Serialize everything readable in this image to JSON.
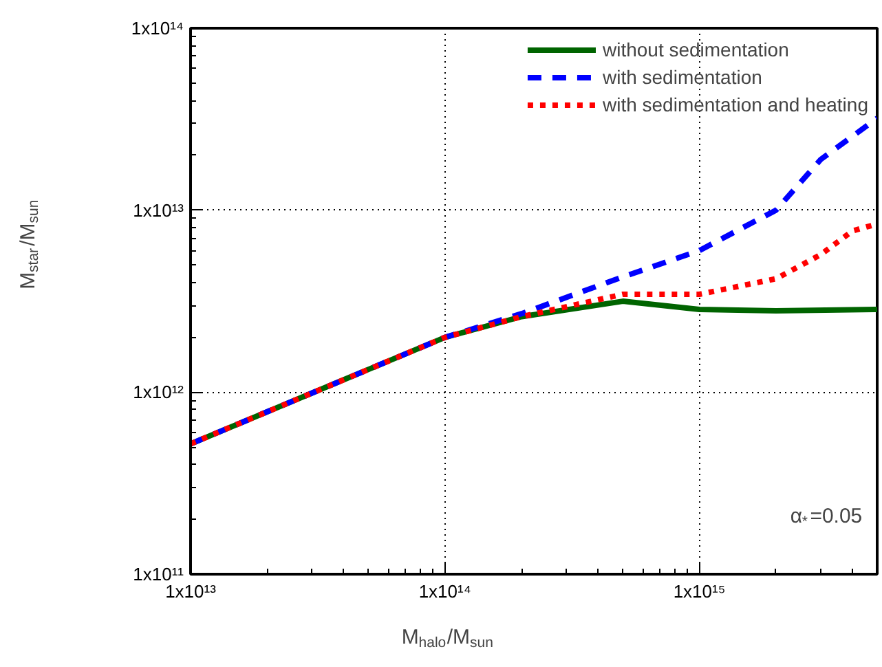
{
  "chart_data": {
    "type": "line",
    "log": "xy",
    "grid": true,
    "legend": "top right",
    "xlabel": "M$_{halo}$/M$_{sun}$",
    "ylabel": "M$_{star}$/M$_{sun}$",
    "xlim": [
      10000000000000.0,
      5000000000000000.0
    ],
    "ylim": [
      100000000000.0,
      100000000000000.0
    ],
    "xticks": [
      {
        "value": 10000000000000.0,
        "label": "1x10¹³"
      },
      {
        "value": 100000000000000.0,
        "label": "1x10¹⁴"
      },
      {
        "value": 1000000000000000.0,
        "label": "1x10¹⁵"
      }
    ],
    "yticks": [
      {
        "value": 100000000000.0,
        "label": "1x10¹¹"
      },
      {
        "value": 1000000000000.0,
        "label": "1x10¹²"
      },
      {
        "value": 10000000000000.0,
        "label": "1x10¹³"
      },
      {
        "value": 100000000000000.0,
        "label": "1x10¹⁴"
      }
    ],
    "annotations": [
      "α$_{*}$=0.05"
    ],
    "series": [
      {
        "name": "without sedimentation",
        "color": "#006400",
        "line_style": "solid",
        "x": [
          10000000000000.0,
          100000000000000.0,
          200000000000000.0,
          500000000000000.0,
          1000000000000000.0,
          2000000000000000.0,
          5000000000000000.0
        ],
        "values": [
          520000000000.0,
          2000000000000.0,
          2600000000000.0,
          3160000000000.0,
          2850000000000.0,
          2800000000000.0,
          2850000000000.0
        ]
      },
      {
        "name": "with sedimentation",
        "color": "#0000ff",
        "line_style": "dashed",
        "x": [
          10000000000000.0,
          100000000000000.0,
          200000000000000.0,
          500000000000000.0,
          1000000000000000.0,
          2000000000000000.0,
          3000000000000000.0,
          5000000000000000.0
        ],
        "values": [
          520000000000.0,
          2000000000000.0,
          2700000000000.0,
          4300000000000.0,
          6000000000000.0,
          10000000000000.0,
          19000000000000.0,
          32000000000000.0
        ]
      },
      {
        "name": "with sedimentation and heating",
        "color": "#ff0000",
        "line_style": "dotted",
        "x": [
          10000000000000.0,
          100000000000000.0,
          200000000000000.0,
          500000000000000.0,
          1000000000000000.0,
          2000000000000000.0,
          3000000000000000.0,
          4000000000000000.0,
          5000000000000000.0
        ],
        "values": [
          520000000000.0,
          2000000000000.0,
          2600000000000.0,
          3450000000000.0,
          3450000000000.0,
          4200000000000.0,
          5700000000000.0,
          7700000000000.0,
          8400000000000.0
        ]
      }
    ]
  }
}
